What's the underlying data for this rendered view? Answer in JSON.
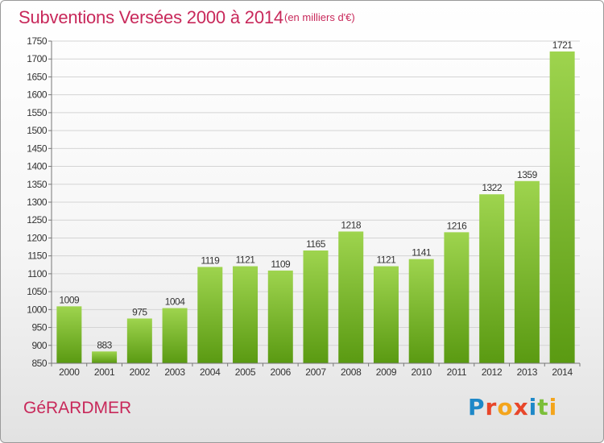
{
  "header": {
    "title": "Subventions Versées 2000 à 2014",
    "subtitle": "(en milliers d'€)"
  },
  "footer": {
    "city": "GéRARDMER",
    "logo": "Proxiti"
  },
  "colors": {
    "title": "#c8285a",
    "bar_top": "#9ed44e",
    "bar_bottom": "#5a9a12"
  },
  "chart_data": {
    "type": "bar",
    "title": "Subventions Versées 2000 à 2014",
    "subtitle": "(en milliers d'€)",
    "xlabel": "",
    "ylabel": "",
    "categories": [
      "2000",
      "2001",
      "2002",
      "2003",
      "2004",
      "2005",
      "2006",
      "2007",
      "2008",
      "2009",
      "2010",
      "2011",
      "2012",
      "2013",
      "2014"
    ],
    "values": [
      1009,
      883,
      975,
      1004,
      1119,
      1121,
      1109,
      1165,
      1218,
      1121,
      1141,
      1216,
      1322,
      1359,
      1721
    ],
    "ylim": [
      850,
      1750
    ],
    "ytick_step": 50,
    "grid": true,
    "legend": "none"
  }
}
